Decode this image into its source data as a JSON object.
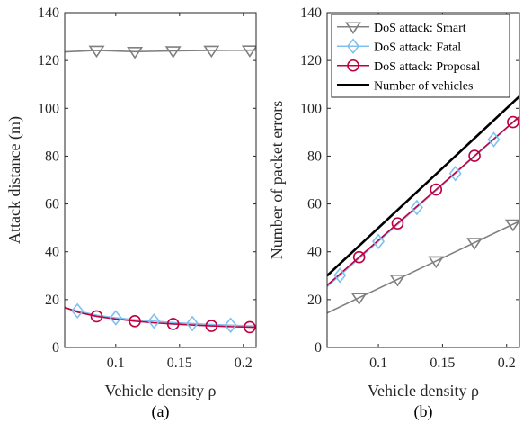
{
  "chart_data": [
    {
      "type": "line",
      "panel": "left",
      "caption": "(a)",
      "xlabel": "Vehicle density ρ",
      "ylabel": "Attack distance (m)",
      "xlim": [
        0.06,
        0.21
      ],
      "ylim": [
        0,
        140
      ],
      "xticks": [
        0.1,
        0.15,
        0.2
      ],
      "xtick_labels": [
        "0.1",
        "0.15",
        "0.2"
      ],
      "yticks": [
        0,
        20,
        40,
        60,
        80,
        100,
        120,
        140
      ],
      "ytick_labels": [
        "0",
        "20",
        "40",
        "60",
        "80",
        "100",
        "120",
        "140"
      ],
      "grid": false,
      "legend": "",
      "series": [
        {
          "key": "smart",
          "color": "#808080",
          "marker": "triangle-down",
          "x": [
            0.06,
            0.085,
            0.115,
            0.145,
            0.175,
            0.205,
            0.21
          ],
          "y": [
            123.6,
            124.2,
            123.7,
            124.0,
            124.2,
            124.3,
            124.3
          ],
          "marker_x": [
            0.085,
            0.115,
            0.145,
            0.175,
            0.205
          ]
        },
        {
          "key": "fatal",
          "color": "#80C0F0",
          "marker": "diamond",
          "x": [
            0.06,
            0.07,
            0.085,
            0.1,
            0.115,
            0.13,
            0.145,
            0.16,
            0.175,
            0.19,
            0.205,
            0.21
          ],
          "y": [
            16.5,
            15.3,
            13.5,
            12.4,
            11.6,
            11.0,
            10.4,
            10.0,
            9.6,
            9.3,
            9.0,
            8.9
          ],
          "marker_x": [
            0.07,
            0.1,
            0.13,
            0.16,
            0.19
          ]
        },
        {
          "key": "proposal",
          "color": "#C0003F",
          "marker": "circle",
          "x": [
            0.06,
            0.07,
            0.085,
            0.1,
            0.115,
            0.13,
            0.145,
            0.16,
            0.175,
            0.19,
            0.205,
            0.21
          ],
          "y": [
            16.8,
            14.8,
            13.0,
            11.9,
            11.0,
            10.3,
            9.8,
            9.4,
            9.0,
            8.7,
            8.5,
            8.4
          ],
          "marker_x": [
            0.085,
            0.115,
            0.145,
            0.175,
            0.205
          ]
        }
      ]
    },
    {
      "type": "line",
      "panel": "right",
      "caption": "(b)",
      "xlabel": "Vehicle density ρ",
      "ylabel": "Number of packet errors",
      "xlim": [
        0.06,
        0.21
      ],
      "ylim": [
        0,
        140
      ],
      "xticks": [
        0.1,
        0.15,
        0.2
      ],
      "xtick_labels": [
        "0.1",
        "0.15",
        "0.2"
      ],
      "yticks": [
        0,
        20,
        40,
        60,
        80,
        100,
        120,
        140
      ],
      "ytick_labels": [
        "0",
        "20",
        "40",
        "60",
        "80",
        "100",
        "120",
        "140"
      ],
      "grid": false,
      "legend": "top-left",
      "series": [
        {
          "key": "smart",
          "name": "DoS attack: Smart",
          "color": "#808080",
          "marker": "triangle-down",
          "x": [
            0.06,
            0.21
          ],
          "y": [
            14.4,
            52.8
          ],
          "marker_x": [
            0.085,
            0.115,
            0.145,
            0.175,
            0.205
          ]
        },
        {
          "key": "fatal",
          "name": "DoS attack: Fatal",
          "color": "#80C0F0",
          "marker": "diamond",
          "x": [
            0.06,
            0.21
          ],
          "y": [
            25.4,
            96.4
          ],
          "marker_x": [
            0.07,
            0.1,
            0.13,
            0.16,
            0.19
          ]
        },
        {
          "key": "proposal",
          "name": "DoS attack: Proposal",
          "color": "#C0003F",
          "marker": "circle",
          "x": [
            0.06,
            0.21
          ],
          "y": [
            26.0,
            96.6
          ],
          "marker_x": [
            0.085,
            0.115,
            0.145,
            0.175,
            0.205
          ]
        },
        {
          "key": "vehicles",
          "name": "Number of vehicles",
          "color": "#000000",
          "marker": "none",
          "x": [
            0.06,
            0.21
          ],
          "y": [
            30.0,
            105.0
          ],
          "marker_x": []
        }
      ]
    }
  ]
}
